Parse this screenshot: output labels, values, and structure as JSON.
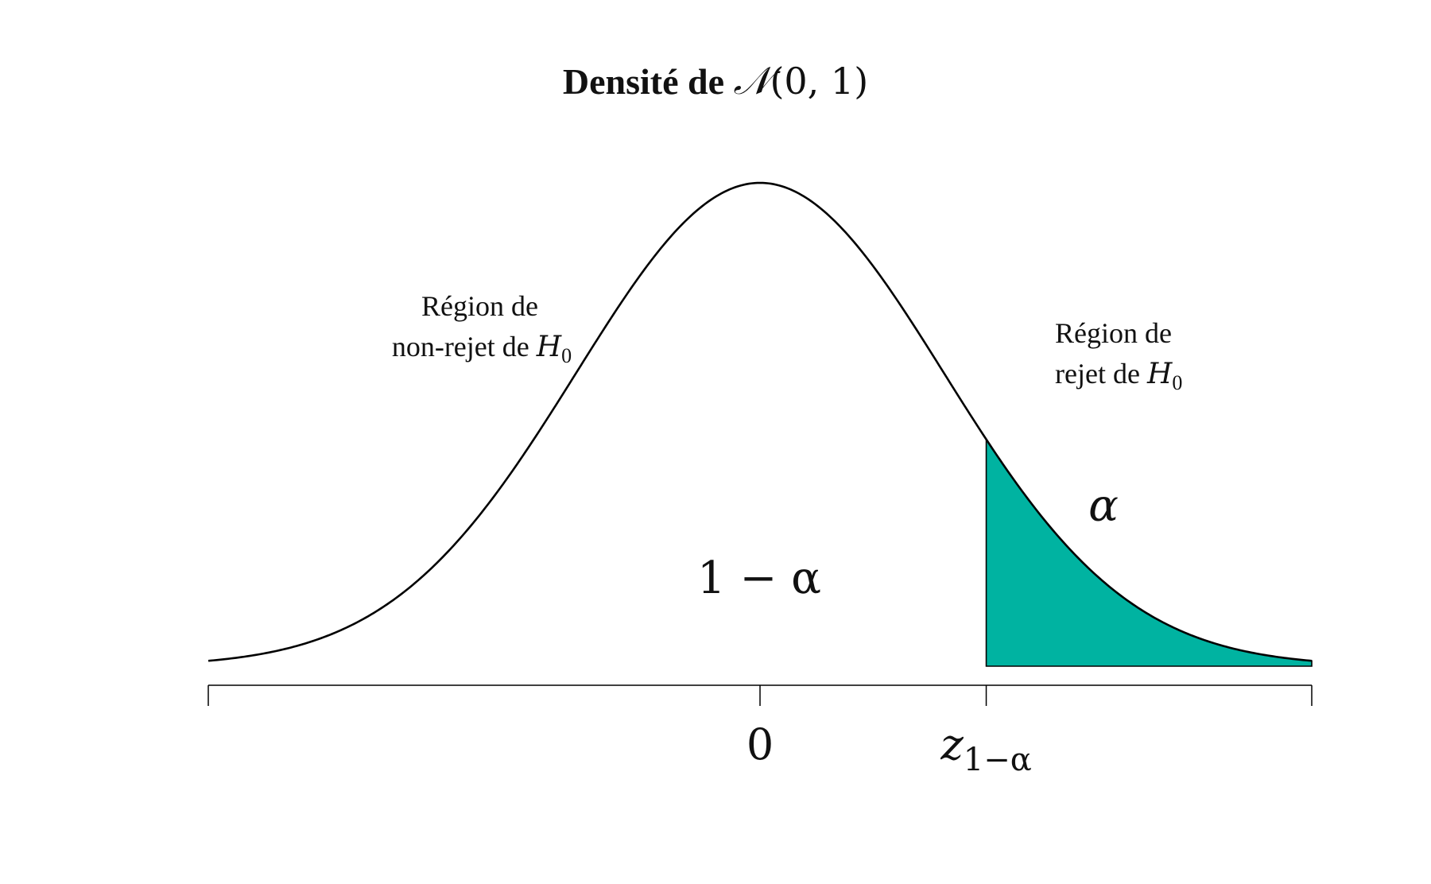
{
  "chart_data": {
    "type": "area",
    "distribution": "normal",
    "mean": 0,
    "sd": 1,
    "title": {
      "text": "Densité de ",
      "math_symbol": "𝒩",
      "math_args": "(0, 1)"
    },
    "xlim": [
      -3,
      3
    ],
    "x_ticks": [
      {
        "value": -3,
        "label": ""
      },
      {
        "value": 0,
        "label": "0"
      },
      {
        "value": 1.23,
        "label_main": "z",
        "label_sub": "1−α"
      },
      {
        "value": 3,
        "label": ""
      }
    ],
    "critical_value": 1.23,
    "shaded_region": {
      "from": 1.23,
      "to": 3,
      "fill": "#00b3a1"
    },
    "area_labels": {
      "left": "1 − α",
      "right": "α"
    },
    "annotations": {
      "non_reject": {
        "line1": "Région de",
        "line2_text": "non-rejet de ",
        "hyp": "H",
        "hyp_sub": "0"
      },
      "reject": {
        "line1": "Région de",
        "line2_text": "rejet de ",
        "hyp": "H",
        "hyp_sub": "0"
      }
    },
    "grid": false,
    "legend": "none"
  }
}
